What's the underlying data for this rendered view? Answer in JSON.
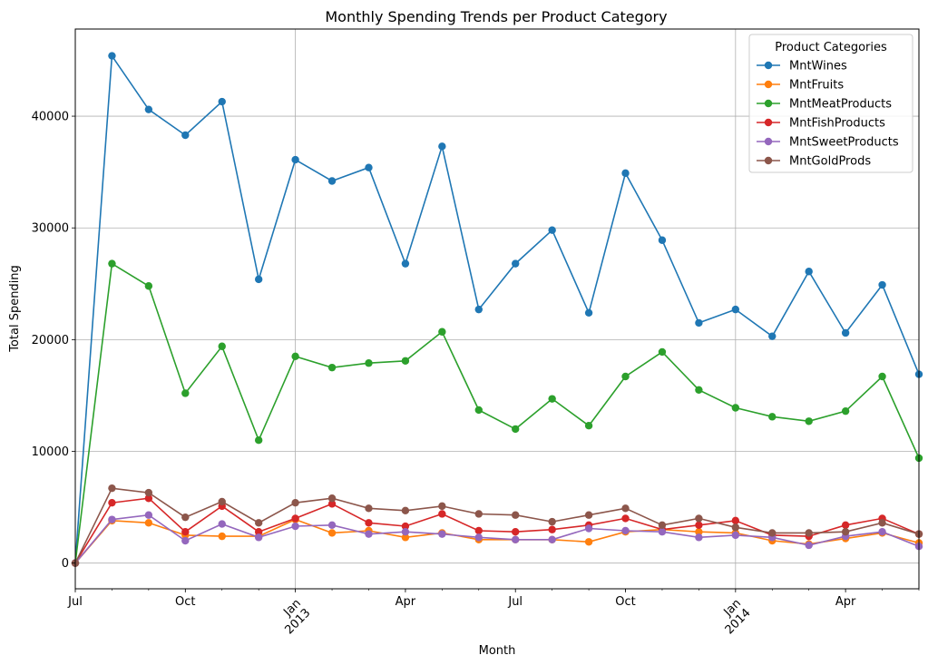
{
  "chart_data": {
    "type": "line",
    "title": "Monthly Spending Trends per Product Category",
    "xlabel": "Month",
    "ylabel": "Total Spending",
    "ylim": [
      -2300,
      47800
    ],
    "grid": true,
    "legend": {
      "title": "Product Categories",
      "placement": "top-right"
    },
    "x": [
      "2012-07",
      "2012-08",
      "2012-09",
      "2012-10",
      "2012-11",
      "2012-12",
      "2013-01",
      "2013-02",
      "2013-03",
      "2013-04",
      "2013-05",
      "2013-06",
      "2013-07",
      "2013-08",
      "2013-09",
      "2013-10",
      "2013-11",
      "2013-12",
      "2014-01",
      "2014-02",
      "2014-03",
      "2014-04",
      "2014-05",
      "2014-06"
    ],
    "y_ticks": [
      {
        "value": 0,
        "label": "0"
      },
      {
        "value": 10000,
        "label": "10000"
      },
      {
        "value": 20000,
        "label": "20000"
      },
      {
        "value": 30000,
        "label": "30000"
      },
      {
        "value": 40000,
        "label": "40000"
      }
    ],
    "x_ticks_major": [
      {
        "month": "2012-07",
        "label": "Jul",
        "label2": ""
      },
      {
        "month": "2012-10",
        "label": "Oct",
        "label2": ""
      },
      {
        "month": "2013-01",
        "label": "Jan",
        "label2": "2013"
      },
      {
        "month": "2013-04",
        "label": "Apr",
        "label2": ""
      },
      {
        "month": "2013-07",
        "label": "Jul",
        "label2": ""
      },
      {
        "month": "2013-10",
        "label": "Oct",
        "label2": ""
      },
      {
        "month": "2014-01",
        "label": "Jan",
        "label2": "2014"
      },
      {
        "month": "2014-04",
        "label": "Apr",
        "label2": ""
      }
    ],
    "x_gridlines": [
      "2013-01",
      "2014-01"
    ],
    "series": [
      {
        "name": "MntWines",
        "color": "#1f77b4",
        "values": [
          0,
          45400,
          40600,
          38300,
          41300,
          25400,
          36100,
          34200,
          35400,
          26800,
          37300,
          22700,
          26800,
          29800,
          22400,
          34900,
          28900,
          21500,
          22700,
          20300,
          26100,
          20600,
          24900,
          16900
        ]
      },
      {
        "name": "MntFruits",
        "color": "#ff7f0e",
        "values": [
          0,
          3800,
          3600,
          2500,
          2400,
          2400,
          3900,
          2700,
          2900,
          2300,
          2700,
          2100,
          2100,
          2100,
          1900,
          2800,
          3000,
          2800,
          2700,
          2000,
          1700,
          2200,
          2700,
          1800
        ]
      },
      {
        "name": "MntMeatProducts",
        "color": "#2ca02c",
        "values": [
          0,
          26800,
          24800,
          15200,
          19400,
          11000,
          18500,
          17500,
          17900,
          18100,
          20700,
          13700,
          12000,
          14700,
          12300,
          16700,
          18900,
          15500,
          13900,
          13100,
          12700,
          13600,
          16700,
          9400
        ]
      },
      {
        "name": "MntFishProducts",
        "color": "#d62728",
        "values": [
          0,
          5400,
          5800,
          2800,
          5100,
          2800,
          4000,
          5300,
          3600,
          3300,
          4400,
          2900,
          2800,
          3000,
          3400,
          4000,
          3000,
          3400,
          3800,
          2500,
          2400,
          3400,
          4000,
          2600
        ]
      },
      {
        "name": "MntSweetProducts",
        "color": "#9467bd",
        "values": [
          0,
          3900,
          4300,
          2000,
          3500,
          2300,
          3300,
          3400,
          2600,
          2800,
          2600,
          2300,
          2100,
          2100,
          3100,
          2900,
          2800,
          2300,
          2500,
          2300,
          1600,
          2400,
          2800,
          1500
        ]
      },
      {
        "name": "MntGoldProds",
        "color": "#8c564b",
        "values": [
          0,
          6700,
          6300,
          4100,
          5500,
          3600,
          5400,
          5800,
          4900,
          4700,
          5100,
          4400,
          4300,
          3700,
          4300,
          4900,
          3400,
          4000,
          3200,
          2700,
          2700,
          2800,
          3600,
          2600
        ]
      }
    ]
  }
}
